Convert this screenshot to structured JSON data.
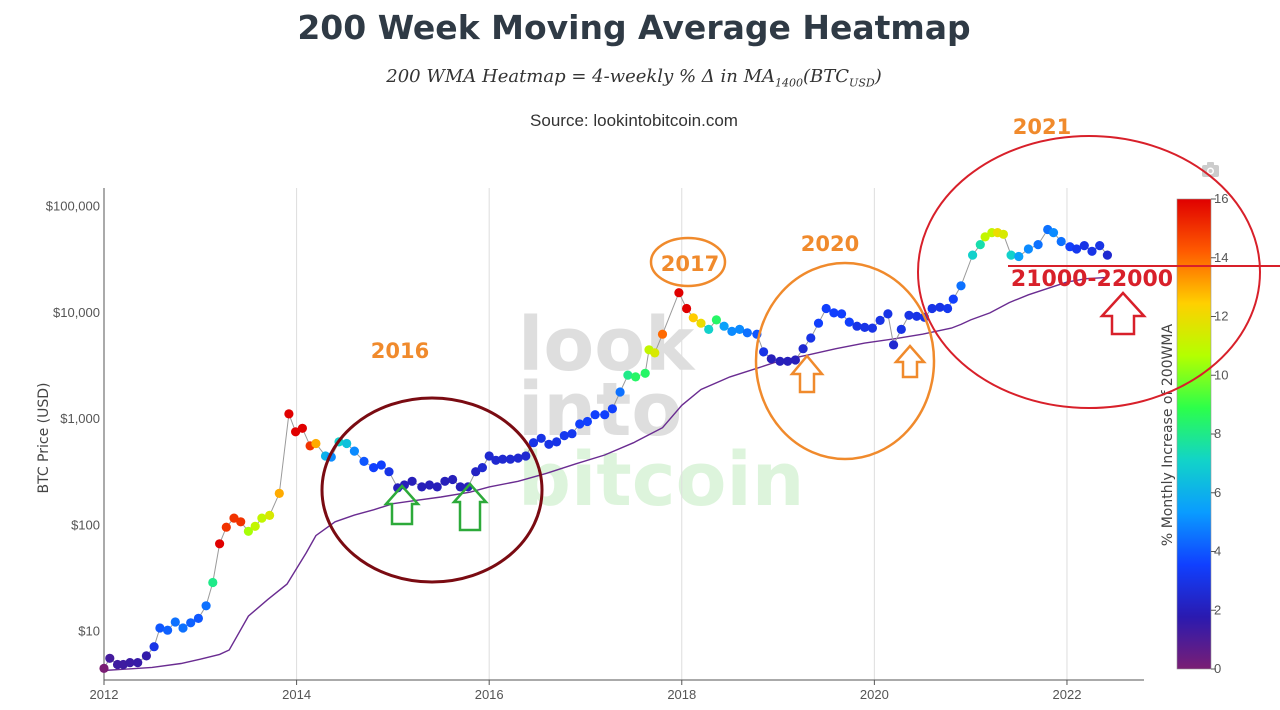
{
  "header": {
    "title": "200 Week Moving Average Heatmap",
    "subtitle": "200 WMA Heatmap = 4-weekly % Δ in MA1400(BTCUSD)",
    "source": "Source: lookintobitcoin.com"
  },
  "watermark": {
    "line1": "look",
    "line2": "into",
    "line3": "bitcoin"
  },
  "icons": {
    "camera": "camera-icon"
  },
  "chart_data": {
    "type": "scatter",
    "title": "200 Week Moving Average Heatmap",
    "ylabel": "BTC Price (USD)",
    "yscale": "log",
    "xlim": [
      2012,
      2022.8
    ],
    "ylim": [
      3.5,
      150000
    ],
    "x_ticks": [
      "2012",
      "2014",
      "2016",
      "2018",
      "2020",
      "2022"
    ],
    "x_tick_values": [
      2012,
      2014,
      2016,
      2018,
      2020,
      2022
    ],
    "y_ticks": [
      "$10",
      "$100",
      "$1,000",
      "$10,000",
      "$100,000"
    ],
    "y_tick_values": [
      10,
      100,
      1000,
      10000,
      100000
    ],
    "colorbar": {
      "label": "% Monthly Increase of 200WMA",
      "min": 0,
      "max": 16,
      "ticks": [
        "0",
        "2",
        "4",
        "6",
        "8",
        "10",
        "12",
        "14",
        "16"
      ],
      "colors": [
        "#7a1e74",
        "#2a1ab0",
        "#1040ff",
        "#0a9cff",
        "#12d4c8",
        "#2cff4a",
        "#b4ff00",
        "#ffd000",
        "#ff5a00",
        "#e00000"
      ]
    },
    "grid": "vertical",
    "series": [
      {
        "name": "BTC price (colored by 200WMA % monthly increase)",
        "points": [
          [
            2012.0,
            4.5,
            0
          ],
          [
            2012.06,
            5.6,
            1.2
          ],
          [
            2012.14,
            4.9,
            1.3
          ],
          [
            2012.2,
            4.9,
            1.3
          ],
          [
            2012.27,
            5.1,
            1.4
          ],
          [
            2012.35,
            5.1,
            1.5
          ],
          [
            2012.44,
            5.9,
            1.6
          ],
          [
            2012.52,
            7.2,
            3
          ],
          [
            2012.58,
            10.8,
            4
          ],
          [
            2012.66,
            10.3,
            4.2
          ],
          [
            2012.74,
            12.3,
            4.5
          ],
          [
            2012.82,
            10.8,
            4.5
          ],
          [
            2012.9,
            12.1,
            4.2
          ],
          [
            2012.98,
            13.3,
            4
          ],
          [
            2013.06,
            17.5,
            4.5
          ],
          [
            2013.13,
            29,
            8
          ],
          [
            2013.2,
            67,
            16
          ],
          [
            2013.27,
            96,
            15
          ],
          [
            2013.35,
            117,
            15
          ],
          [
            2013.42,
            108,
            15
          ],
          [
            2013.5,
            88,
            10.5
          ],
          [
            2013.57,
            98,
            11
          ],
          [
            2013.64,
            117,
            11
          ],
          [
            2013.72,
            124,
            11.5
          ],
          [
            2013.82,
            200,
            13
          ],
          [
            2013.92,
            1120,
            16
          ],
          [
            2013.99,
            760,
            16
          ],
          [
            2014.06,
            820,
            16
          ],
          [
            2014.14,
            560,
            15
          ],
          [
            2014.2,
            590,
            13
          ],
          [
            2014.3,
            450,
            6
          ],
          [
            2014.36,
            440,
            5
          ],
          [
            2014.44,
            610,
            7
          ],
          [
            2014.52,
            590,
            6.5
          ],
          [
            2014.6,
            500,
            5
          ],
          [
            2014.7,
            400,
            4
          ],
          [
            2014.8,
            350,
            3.5
          ],
          [
            2014.88,
            370,
            3.5
          ],
          [
            2014.96,
            320,
            3
          ],
          [
            2015.05,
            225,
            2
          ],
          [
            2015.12,
            240,
            2
          ],
          [
            2015.2,
            260,
            2
          ],
          [
            2015.3,
            230,
            2
          ],
          [
            2015.38,
            240,
            2
          ],
          [
            2015.46,
            230,
            2
          ],
          [
            2015.54,
            260,
            2
          ],
          [
            2015.62,
            270,
            2
          ],
          [
            2015.7,
            230,
            2
          ],
          [
            2015.78,
            230,
            2
          ],
          [
            2015.86,
            320,
            2.2
          ],
          [
            2015.93,
            350,
            2.5
          ],
          [
            2016.0,
            450,
            2.5
          ],
          [
            2016.07,
            410,
            2.5
          ],
          [
            2016.14,
            420,
            2.5
          ],
          [
            2016.22,
            420,
            2.5
          ],
          [
            2016.3,
            430,
            2.5
          ],
          [
            2016.38,
            450,
            2.5
          ],
          [
            2016.46,
            600,
            3
          ],
          [
            2016.54,
            660,
            3
          ],
          [
            2016.62,
            580,
            3
          ],
          [
            2016.7,
            610,
            3
          ],
          [
            2016.78,
            700,
            3.2
          ],
          [
            2016.86,
            730,
            3.2
          ],
          [
            2016.94,
            900,
            3.5
          ],
          [
            2017.02,
            950,
            3.5
          ],
          [
            2017.1,
            1100,
            3.5
          ],
          [
            2017.2,
            1100,
            3.5
          ],
          [
            2017.28,
            1250,
            3.5
          ],
          [
            2017.36,
            1800,
            4.5
          ],
          [
            2017.44,
            2600,
            8
          ],
          [
            2017.52,
            2500,
            8.5
          ],
          [
            2017.62,
            2700,
            8.5
          ],
          [
            2017.66,
            4500,
            11
          ],
          [
            2017.72,
            4200,
            11.5
          ],
          [
            2017.8,
            6300,
            14
          ],
          [
            2017.97,
            15500,
            16
          ],
          [
            2018.05,
            11000,
            16
          ],
          [
            2018.12,
            9000,
            12.5
          ],
          [
            2018.2,
            8000,
            12
          ],
          [
            2018.28,
            7000,
            7
          ],
          [
            2018.36,
            8600,
            8.5
          ],
          [
            2018.44,
            7500,
            5.5
          ],
          [
            2018.52,
            6700,
            5
          ],
          [
            2018.6,
            7000,
            5
          ],
          [
            2018.68,
            6500,
            4.5
          ],
          [
            2018.78,
            6300,
            4
          ],
          [
            2018.85,
            4300,
            3
          ],
          [
            2018.93,
            3700,
            2
          ],
          [
            2019.02,
            3500,
            2
          ],
          [
            2019.1,
            3500,
            2
          ],
          [
            2019.18,
            3600,
            2
          ],
          [
            2019.26,
            4600,
            2.5
          ],
          [
            2019.34,
            5800,
            3
          ],
          [
            2019.42,
            8000,
            3.5
          ],
          [
            2019.5,
            11000,
            3.5
          ],
          [
            2019.58,
            10000,
            3.5
          ],
          [
            2019.66,
            9800,
            3.5
          ],
          [
            2019.74,
            8200,
            3.5
          ],
          [
            2019.82,
            7500,
            3
          ],
          [
            2019.9,
            7300,
            3
          ],
          [
            2019.98,
            7200,
            3
          ],
          [
            2020.06,
            8500,
            3
          ],
          [
            2020.14,
            9800,
            3
          ],
          [
            2020.2,
            5000,
            2.5
          ],
          [
            2020.28,
            7000,
            3
          ],
          [
            2020.36,
            9500,
            3
          ],
          [
            2020.44,
            9300,
            3
          ],
          [
            2020.52,
            9100,
            3
          ],
          [
            2020.6,
            11000,
            3
          ],
          [
            2020.68,
            11300,
            3
          ],
          [
            2020.76,
            11000,
            3.2
          ],
          [
            2020.82,
            13500,
            3.5
          ],
          [
            2020.9,
            18000,
            4.5
          ],
          [
            2021.02,
            35000,
            7
          ],
          [
            2021.1,
            44000,
            7.5
          ],
          [
            2021.15,
            52000,
            11
          ],
          [
            2021.22,
            57000,
            11
          ],
          [
            2021.28,
            57000,
            12
          ],
          [
            2021.34,
            55000,
            11.5
          ],
          [
            2021.42,
            35000,
            7
          ],
          [
            2021.5,
            34000,
            5.5
          ],
          [
            2021.6,
            40000,
            5
          ],
          [
            2021.7,
            44000,
            4.5
          ],
          [
            2021.8,
            61000,
            4.5
          ],
          [
            2021.86,
            57000,
            5
          ],
          [
            2021.94,
            47000,
            4.5
          ],
          [
            2022.03,
            42000,
            3.5
          ],
          [
            2022.1,
            40000,
            3.2
          ],
          [
            2022.18,
            43000,
            3
          ],
          [
            2022.26,
            38000,
            3
          ],
          [
            2022.34,
            43000,
            3
          ],
          [
            2022.42,
            35000,
            2.5
          ]
        ]
      },
      {
        "name": "200 Week Moving Average",
        "points": [
          [
            2012.0,
            4.3
          ],
          [
            2012.5,
            4.6
          ],
          [
            2012.8,
            5.0
          ],
          [
            2013.0,
            5.5
          ],
          [
            2013.2,
            6.1
          ],
          [
            2013.3,
            6.7
          ],
          [
            2013.5,
            14
          ],
          [
            2013.7,
            20
          ],
          [
            2013.9,
            28
          ],
          [
            2014.1,
            55
          ],
          [
            2014.2,
            80
          ],
          [
            2014.4,
            108
          ],
          [
            2014.6,
            125
          ],
          [
            2014.8,
            140
          ],
          [
            2015.0,
            160
          ],
          [
            2015.2,
            170
          ],
          [
            2015.5,
            185
          ],
          [
            2015.8,
            205
          ],
          [
            2016.0,
            230
          ],
          [
            2016.3,
            260
          ],
          [
            2016.6,
            310
          ],
          [
            2016.9,
            380
          ],
          [
            2017.2,
            460
          ],
          [
            2017.5,
            600
          ],
          [
            2017.8,
            830
          ],
          [
            2018.0,
            1350
          ],
          [
            2018.2,
            1900
          ],
          [
            2018.5,
            2500
          ],
          [
            2018.8,
            3050
          ],
          [
            2019.0,
            3500
          ],
          [
            2019.3,
            4000
          ],
          [
            2019.6,
            4600
          ],
          [
            2019.9,
            5200
          ],
          [
            2020.2,
            5700
          ],
          [
            2020.5,
            6300
          ],
          [
            2020.8,
            7200
          ],
          [
            2020.9,
            7800
          ],
          [
            2021.0,
            8600
          ],
          [
            2021.2,
            10000
          ],
          [
            2021.4,
            12500
          ],
          [
            2021.6,
            14800
          ],
          [
            2021.8,
            17000
          ],
          [
            2022.0,
            19500
          ],
          [
            2022.2,
            21000
          ],
          [
            2022.42,
            21600
          ]
        ]
      }
    ],
    "annotations": {
      "labels": [
        "2016",
        "2017",
        "2020",
        "2021",
        "21000-22000"
      ],
      "circled_periods": [
        "2016",
        "2017",
        "2020",
        "2021"
      ]
    },
    "legend": "none"
  }
}
